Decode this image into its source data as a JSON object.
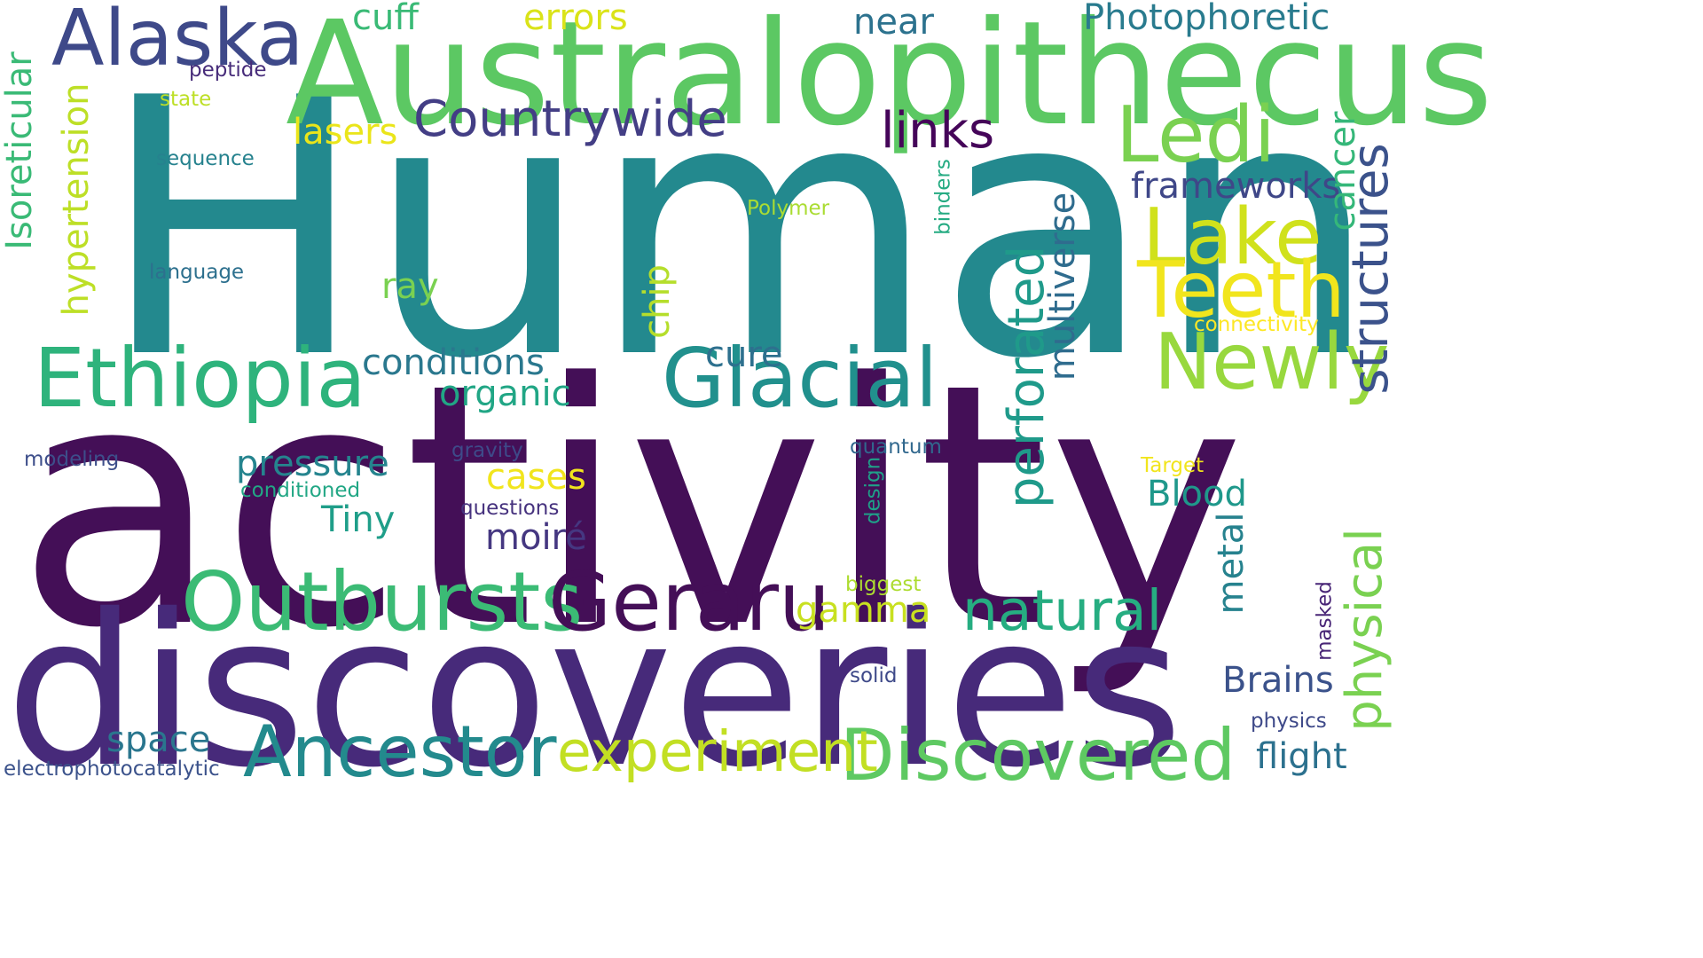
{
  "words": [
    {
      "text": "Human",
      "color": "#23898e",
      "rotated": false
    },
    {
      "text": "activity",
      "color": "#440f57",
      "rotated": false
    },
    {
      "text": "discoveries",
      "color": "#472a7a",
      "rotated": false
    },
    {
      "text": "Australopithecus",
      "color": "#5cc863",
      "rotated": false
    },
    {
      "text": "Ethiopia",
      "color": "#2eb37c",
      "rotated": false
    },
    {
      "text": "Glacial",
      "color": "#21908d",
      "rotated": false
    },
    {
      "text": "Outbursts",
      "color": "#3bbb75",
      "rotated": false
    },
    {
      "text": "Geraru",
      "color": "#440f57",
      "rotated": false
    },
    {
      "text": "Alaska",
      "color": "#3e4989",
      "rotated": false
    },
    {
      "text": "Ledi",
      "color": "#7ad151",
      "rotated": false
    },
    {
      "text": "Lake",
      "color": "#d0e11c",
      "rotated": false
    },
    {
      "text": "Teeth",
      "color": "#f1e51d",
      "rotated": false
    },
    {
      "text": "Newly",
      "color": "#98d83e",
      "rotated": false
    },
    {
      "text": "Ancestor",
      "color": "#238a8d",
      "rotated": false
    },
    {
      "text": "Discovered",
      "color": "#5ec962",
      "rotated": false
    },
    {
      "text": "experiment",
      "color": "#c2df23",
      "rotated": false
    },
    {
      "text": "natural",
      "color": "#26ad81",
      "rotated": false
    },
    {
      "text": "Countrywide",
      "color": "#433e85",
      "rotated": false
    },
    {
      "text": "links",
      "color": "#450559",
      "rotated": false
    },
    {
      "text": "frameworks",
      "color": "#3f4788",
      "rotated": false
    },
    {
      "text": "Photophoretic",
      "color": "#297b8e",
      "rotated": false
    },
    {
      "text": "pressure",
      "color": "#25848e",
      "rotated": false
    },
    {
      "text": "conditions",
      "color": "#2a788e",
      "rotated": false
    },
    {
      "text": "organic",
      "color": "#21a685",
      "rotated": false
    },
    {
      "text": "cure",
      "color": "#2d708e",
      "rotated": false
    },
    {
      "text": "Brains",
      "color": "#3b528b",
      "rotated": false
    },
    {
      "text": "Blood",
      "color": "#1f988b",
      "rotated": false
    },
    {
      "text": "flight",
      "color": "#2c718e",
      "rotated": false
    },
    {
      "text": "space",
      "color": "#2a768e",
      "rotated": false
    },
    {
      "text": "Tiny",
      "color": "#1f9e89",
      "rotated": false
    },
    {
      "text": "cases",
      "color": "#f1e51d",
      "rotated": false
    },
    {
      "text": "moiré",
      "color": "#453781",
      "rotated": false
    },
    {
      "text": "gamma",
      "color": "#c8e020",
      "rotated": false
    },
    {
      "text": "ray",
      "color": "#7ad151",
      "rotated": false
    },
    {
      "text": "lasers",
      "color": "#eae51a",
      "rotated": false
    },
    {
      "text": "errors",
      "color": "#dae319",
      "rotated": false
    },
    {
      "text": "cuff",
      "color": "#3aba76",
      "rotated": false
    },
    {
      "text": "near",
      "color": "#2c728e",
      "rotated": false
    },
    {
      "text": "conditioned",
      "color": "#22a785",
      "rotated": false
    },
    {
      "text": "questions",
      "color": "#46327e",
      "rotated": false
    },
    {
      "text": "gravity",
      "color": "#3e4a89",
      "rotated": false
    },
    {
      "text": "modeling",
      "color": "#3d4e8a",
      "rotated": false
    },
    {
      "text": "peptide",
      "color": "#472c7a",
      "rotated": false
    },
    {
      "text": "state",
      "color": "#bddf26",
      "rotated": false
    },
    {
      "text": "sequence",
      "color": "#26828e",
      "rotated": false
    },
    {
      "text": "language",
      "color": "#2d708e",
      "rotated": false
    },
    {
      "text": "Polymer",
      "color": "#aadc32",
      "rotated": false
    },
    {
      "text": "connectivity",
      "color": "#fde725",
      "rotated": false
    },
    {
      "text": "Target",
      "color": "#f1e51d",
      "rotated": false
    },
    {
      "text": "quantum",
      "color": "#31688e",
      "rotated": false
    },
    {
      "text": "biggest",
      "color": "#addc30",
      "rotated": false
    },
    {
      "text": "solid",
      "color": "#3e4989",
      "rotated": false
    },
    {
      "text": "physics",
      "color": "#3e4989",
      "rotated": false
    },
    {
      "text": "electrophotocatalytic",
      "color": "#3b528b",
      "rotated": false
    },
    {
      "text": "Isoreticular",
      "color": "#3aba76",
      "rotated": true
    },
    {
      "text": "hypertension",
      "color": "#bddf26",
      "rotated": true
    },
    {
      "text": "chip",
      "color": "#b5de2b",
      "rotated": true
    },
    {
      "text": "perforated",
      "color": "#1f9a8a",
      "rotated": true
    },
    {
      "text": "multiverse",
      "color": "#2f6c8e",
      "rotated": true
    },
    {
      "text": "cancer",
      "color": "#35b779",
      "rotated": true
    },
    {
      "text": "structures",
      "color": "#3b528b",
      "rotated": true
    },
    {
      "text": "physical",
      "color": "#7ad151",
      "rotated": true
    },
    {
      "text": "metal",
      "color": "#26828e",
      "rotated": true
    },
    {
      "text": "masked",
      "color": "#482576",
      "rotated": true
    },
    {
      "text": "design",
      "color": "#1fa088",
      "rotated": true
    },
    {
      "text": "binders",
      "color": "#25ab82",
      "rotated": true
    }
  ]
}
